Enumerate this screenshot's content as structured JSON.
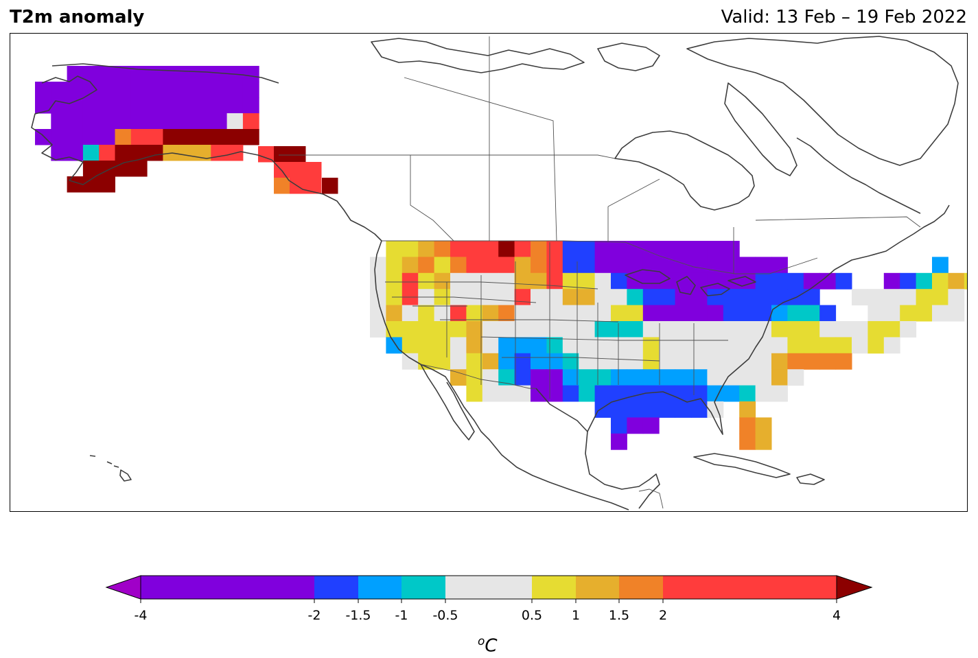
{
  "header": {
    "variable_title": "T2m anomaly",
    "valid_label": "Valid: 13 Feb – 19 Feb 2022"
  },
  "colorbar": {
    "unit_superscript": "o",
    "unit_main": "C",
    "ticks": [
      "-4",
      "-2",
      "-1.5",
      "-1",
      "-0.5",
      "0.5",
      "1",
      "1.5",
      "2",
      "4"
    ],
    "bins": [
      {
        "from": -4,
        "to": -2,
        "color": "#8000dd"
      },
      {
        "from": -2,
        "to": -1.5,
        "color": "#2040ff"
      },
      {
        "from": -1.5,
        "to": -1,
        "color": "#00a0ff"
      },
      {
        "from": -1,
        "to": -0.5,
        "color": "#00c8c8"
      },
      {
        "from": -0.5,
        "to": 0.5,
        "color": "#e6e6e6"
      },
      {
        "from": 0.5,
        "to": 1,
        "color": "#e6dc32"
      },
      {
        "from": 1,
        "to": 1.5,
        "color": "#e6af2d"
      },
      {
        "from": 1.5,
        "to": 2,
        "color": "#f08228"
      },
      {
        "from": 2,
        "to": 4,
        "color": "#ff3c3c"
      }
    ],
    "extend_low_color": "#a000c8",
    "extend_high_color": "#8c0000"
  },
  "colors": {
    "coastline": "#3c3c3c",
    "border": "#505050"
  }
}
